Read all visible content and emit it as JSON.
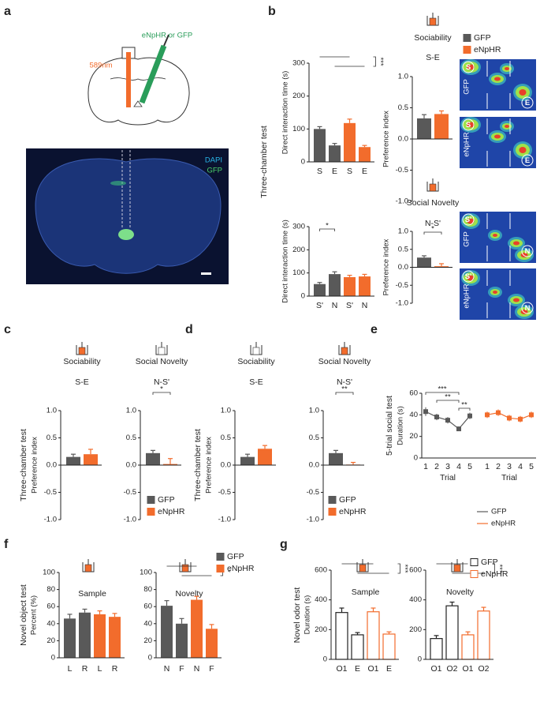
{
  "panel_labels": [
    "a",
    "b",
    "c",
    "d",
    "e",
    "f",
    "g"
  ],
  "figure_a": {
    "injection": "eNpHR or GFP",
    "laser": "589nm",
    "stain_1": "DAPI",
    "stain_2": "GFP"
  },
  "heatmaps": [
    {
      "group": "GFP",
      "left": "S",
      "right": "E"
    },
    {
      "group": "eNpHR",
      "left": "S",
      "right": "E"
    },
    {
      "group": "GFP",
      "left": "S'",
      "right": "N"
    },
    {
      "group": "eNpHR",
      "left": "S'",
      "right": "N"
    }
  ],
  "chart_data": [
    {
      "type": "bar",
      "ylabel": "Direct interaction time (s)",
      "side_label": "Three-chamber test",
      "categories": [
        "S",
        "E",
        "S",
        "E"
      ],
      "values": [
        100,
        50,
        118,
        45
      ],
      "errors": [
        7,
        6,
        12,
        5
      ],
      "colors": [
        "#595959",
        "#595959",
        "#f26c2c",
        "#f26c2c"
      ],
      "ylim": [
        0,
        300
      ],
      "yticks": [
        0,
        100,
        200,
        300
      ],
      "brackets": [
        {
          "label": "***",
          "spans": [
            [
              0,
              2
            ],
            [
              1,
              3
            ]
          ]
        }
      ]
    },
    {
      "type": "bar",
      "header": "Sociability",
      "subtitle": "S-E",
      "ylabel": "Preference index",
      "values": [
        0.33,
        0.4
      ],
      "errors": [
        0.06,
        0.05
      ],
      "colors": [
        "#595959",
        "#f26c2c"
      ],
      "ylim": [
        -1,
        1
      ],
      "yticks": [
        {
          "value": -1,
          "label": "-1.0"
        },
        -0.5,
        {
          "value": 0,
          "label": "0.0"
        },
        0.5,
        {
          "value": 1,
          "label": "1.0"
        }
      ],
      "legend": [
        {
          "name": "GFP",
          "color": "#595959"
        },
        {
          "name": "eNpHR",
          "color": "#f26c2c"
        }
      ]
    },
    {
      "type": "bar",
      "ylabel": "Direct interaction time (s)",
      "categories": [
        "S'",
        "N",
        "S'",
        "N"
      ],
      "values": [
        52,
        95,
        82,
        85
      ],
      "errors": [
        7,
        10,
        8,
        9
      ],
      "colors": [
        "#595959",
        "#595959",
        "#f26c2c",
        "#f26c2c"
      ],
      "ylim": [
        0,
        300
      ],
      "yticks": [
        0,
        100,
        200,
        300
      ],
      "brackets": [
        {
          "label": "*",
          "spans": [
            [
              0,
              1
            ]
          ]
        }
      ]
    },
    {
      "type": "bar",
      "header": "Social Novelty",
      "subtitle": "N-S'",
      "ylabel": "Preference index",
      "values": [
        0.27,
        0.03
      ],
      "errors": [
        0.05,
        0.07
      ],
      "colors": [
        "#595959",
        "#f26c2c"
      ],
      "ylim": [
        -1,
        1
      ],
      "yticks": [
        {
          "value": -1,
          "label": "-1.0"
        },
        -0.5,
        {
          "value": 0,
          "label": "0.0"
        },
        0.5,
        {
          "value": 1,
          "label": "1.0"
        }
      ],
      "brackets": [
        {
          "label": "*",
          "spans": [
            [
              0,
              1
            ]
          ]
        }
      ]
    },
    {
      "type": "bar",
      "header": "Sociability",
      "subtitle": "S-E",
      "ylabel": "Preference index",
      "side_label": "Three-chamber test",
      "values": [
        0.15,
        0.2
      ],
      "errors": [
        0.05,
        0.09
      ],
      "colors": [
        "#595959",
        "#f26c2c"
      ],
      "ylim": [
        -1,
        1
      ],
      "yticks": [
        {
          "value": -1,
          "label": "-1.0"
        },
        -0.5,
        {
          "value": 0,
          "label": "0.0"
        },
        0.5,
        {
          "value": 1,
          "label": "1.0"
        }
      ]
    },
    {
      "type": "bar",
      "header": "Social Novelty",
      "subtitle": "N-S'",
      "values": [
        0.22,
        0.02
      ],
      "errors": [
        0.05,
        0.1
      ],
      "colors": [
        "#595959",
        "#f26c2c"
      ],
      "ylim": [
        -1,
        1
      ],
      "yticks": [
        {
          "value": -1,
          "label": "-1.0"
        },
        -0.5,
        {
          "value": 0,
          "label": "0.0"
        },
        0.5,
        {
          "value": 1,
          "label": "1.0"
        }
      ],
      "brackets": [
        {
          "label": "*",
          "spans": [
            [
              0,
              1
            ]
          ]
        }
      ],
      "legend": [
        {
          "name": "GFP",
          "color": "#595959"
        },
        {
          "name": "eNpHR",
          "color": "#f26c2c"
        }
      ]
    },
    {
      "type": "bar",
      "header": "Sociability",
      "subtitle": "S-E",
      "ylabel": "Preference index",
      "side_label": "Three-chamber test",
      "values": [
        0.15,
        0.3
      ],
      "errors": [
        0.05,
        0.06
      ],
      "colors": [
        "#595959",
        "#f26c2c"
      ],
      "ylim": [
        -1,
        1
      ],
      "yticks": [
        {
          "value": -1,
          "label": "-1.0"
        },
        -0.5,
        {
          "value": 0,
          "label": "0.0"
        },
        0.5,
        {
          "value": 1,
          "label": "1.0"
        }
      ]
    },
    {
      "type": "bar",
      "header": "Social Novelty",
      "subtitle": "N-S'",
      "values": [
        0.22,
        0.01
      ],
      "errors": [
        0.05,
        0.04
      ],
      "colors": [
        "#595959",
        "#f26c2c"
      ],
      "ylim": [
        -1,
        1
      ],
      "yticks": [
        {
          "value": -1,
          "label": "-1.0"
        },
        -0.5,
        {
          "value": 0,
          "label": "0.0"
        },
        0.5,
        {
          "value": 1,
          "label": "1.0"
        }
      ],
      "brackets": [
        {
          "label": "**",
          "spans": [
            [
              0,
              1
            ]
          ]
        }
      ],
      "legend": [
        {
          "name": "GFP",
          "color": "#595959"
        },
        {
          "name": "eNpHR",
          "color": "#f26c2c"
        }
      ]
    },
    {
      "type": "line",
      "side_label": "5-trial social test",
      "ylabel": "Duration (s)",
      "xlabel": "Trial",
      "categories": [
        "1",
        "2",
        "3",
        "4",
        "5"
      ],
      "series": [
        {
          "name": "GFP",
          "color": "#595959",
          "values": [
            43,
            38,
            35,
            27,
            39
          ],
          "errors": [
            4,
            3,
            3,
            2,
            3
          ]
        },
        {
          "name": "eNpHR",
          "color": "#f26c2c",
          "values": [
            40,
            42,
            37,
            36,
            40
          ],
          "errors": [
            3,
            3,
            3,
            3,
            3
          ]
        }
      ],
      "ylim": [
        0,
        60
      ],
      "yticks": [
        0,
        20,
        40,
        60
      ],
      "brackets": [
        {
          "label": "***",
          "spans": [
            [
              0,
              3
            ]
          ]
        },
        {
          "label": "**",
          "spans": [
            [
              1,
              3
            ]
          ]
        },
        {
          "label": "**",
          "spans": [
            [
              3,
              4
            ]
          ]
        }
      ]
    },
    {
      "type": "bar",
      "header": "Sample",
      "ylabel": "Percent (%)",
      "side_label": "Novel object test",
      "categories": [
        "L",
        "R",
        "L",
        "R"
      ],
      "values": [
        46,
        53,
        51,
        48
      ],
      "errors": [
        5,
        4,
        4,
        4
      ],
      "colors": [
        "#595959",
        "#595959",
        "#f26c2c",
        "#f26c2c"
      ],
      "ylim": [
        0,
        100
      ],
      "yticks": [
        0,
        20,
        40,
        60,
        80,
        100
      ]
    },
    {
      "type": "bar",
      "header": "Novelty",
      "categories": [
        "N",
        "F",
        "N",
        "F"
      ],
      "values": [
        61,
        40,
        68,
        34
      ],
      "errors": [
        6,
        6,
        4,
        5
      ],
      "colors": [
        "#595959",
        "#595959",
        "#f26c2c",
        "#f26c2c"
      ],
      "ylim": [
        0,
        100
      ],
      "yticks": [
        0,
        20,
        40,
        60,
        80,
        100
      ],
      "brackets": [
        {
          "label": "*",
          "spans": [
            [
              0,
              2
            ],
            [
              1,
              3
            ]
          ]
        }
      ],
      "legend": [
        {
          "name": "GFP",
          "color": "#595959"
        },
        {
          "name": "eNpHR",
          "color": "#f26c2c"
        }
      ]
    },
    {
      "type": "bar",
      "header": "Sample",
      "ylabel": "Duration (s)",
      "side_label": "Novel odor test",
      "outline": true,
      "categories": [
        "O1",
        "E",
        "O1",
        "E"
      ],
      "values": [
        315,
        165,
        320,
        170
      ],
      "errors": [
        30,
        15,
        25,
        15
      ],
      "colors": [
        "#222222",
        "#222222",
        "#f26c2c",
        "#f26c2c"
      ],
      "ylim": [
        0,
        600
      ],
      "yticks": [
        0,
        200,
        400,
        600
      ],
      "brackets": [
        {
          "label": "***",
          "spans": [
            [
              0,
              2
            ],
            [
              1,
              3
            ]
          ]
        }
      ]
    },
    {
      "type": "bar",
      "header": "Novelty",
      "outline": true,
      "categories": [
        "O1",
        "O2",
        "O1",
        "O2"
      ],
      "values": [
        140,
        360,
        165,
        325
      ],
      "errors": [
        20,
        25,
        20,
        25
      ],
      "colors": [
        "#222222",
        "#222222",
        "#f26c2c",
        "#f26c2c"
      ],
      "ylim": [
        0,
        600
      ],
      "yticks": [
        0,
        200,
        400,
        600
      ],
      "brackets": [
        {
          "label": "***",
          "spans": [
            [
              0,
              2
            ],
            [
              1,
              3
            ]
          ]
        }
      ],
      "legend": [
        {
          "name": "GFP",
          "color": "#222222"
        },
        {
          "name": "eNpHR",
          "color": "#f26c2c"
        }
      ]
    }
  ]
}
